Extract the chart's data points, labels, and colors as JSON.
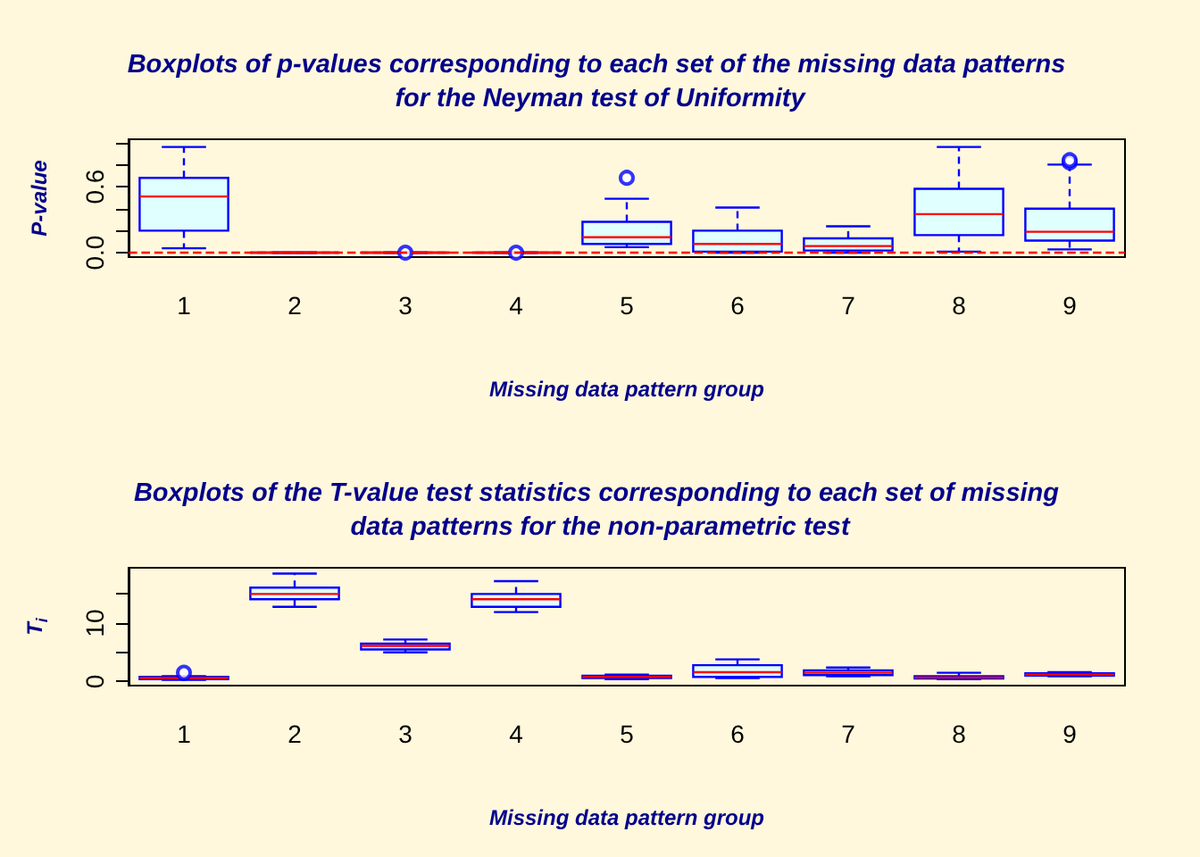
{
  "chart_data": [
    {
      "type": "box",
      "title": "Boxplots of p-values corresponding to each set of the missing data patterns for the Neyman test of Uniformity",
      "xlabel": "Missing data pattern group",
      "ylabel": "P-value",
      "categories": [
        "1",
        "2",
        "3",
        "4",
        "5",
        "6",
        "7",
        "8",
        "9"
      ],
      "color": "#0000ff",
      "boxes": [
        {
          "low": 0.04,
          "q1": 0.2,
          "median": 0.51,
          "q3": 0.68,
          "high": 0.96
        },
        {
          "low": 0,
          "q1": 0,
          "median": 0,
          "q3": 0,
          "high": 0
        },
        {
          "low": 0,
          "q1": 0,
          "median": 0,
          "q3": 0,
          "high": 0,
          "outliers": [
            0
          ]
        },
        {
          "low": 0,
          "q1": 0,
          "median": 0,
          "q3": 0,
          "high": 0,
          "outliers": [
            0
          ]
        },
        {
          "low": 0.05,
          "q1": 0.08,
          "median": 0.14,
          "q3": 0.28,
          "high": 0.49,
          "outliers": [
            0.68
          ]
        },
        {
          "low": 0,
          "q1": 0.01,
          "median": 0.08,
          "q3": 0.2,
          "high": 0.41
        },
        {
          "low": 0,
          "q1": 0.02,
          "median": 0.06,
          "q3": 0.13,
          "high": 0.24
        },
        {
          "low": 0.01,
          "q1": 0.16,
          "median": 0.35,
          "q3": 0.58,
          "high": 0.96
        },
        {
          "low": 0.03,
          "q1": 0.11,
          "median": 0.19,
          "q3": 0.4,
          "high": 0.8,
          "outliers": [
            0.82,
            0.84
          ]
        }
      ],
      "ylim": [
        -0.04,
        1.03
      ],
      "yticks": [
        {
          "value": 0,
          "label": "0.0"
        },
        {
          "value": 0.2,
          "label": null
        },
        {
          "value": 0.4,
          "label": null
        },
        {
          "value": 0.6,
          "label": "0.6"
        },
        {
          "value": 0.8,
          "label": null
        },
        {
          "value": 1,
          "label": null
        }
      ],
      "ref_lines": [
        {
          "axis": "y",
          "value": 0,
          "color": "#ff0000",
          "line_style": "dashed"
        }
      ],
      "grid": false
    },
    {
      "type": "box",
      "title": "Boxplots of the T-value test statistics corresponding to each set of missing data patterns for the non-parametric test",
      "xlabel": "Missing data pattern group",
      "ylabel": "T$_{i}$",
      "categories": [
        "1",
        "2",
        "3",
        "4",
        "5",
        "6",
        "7",
        "8",
        "9"
      ],
      "color": "#0000ff",
      "boxes": [
        {
          "low": 0.3,
          "q1": 0.4,
          "median": 0.6,
          "q3": 0.8,
          "high": 0.9,
          "outliers": [
            1.5
          ]
        },
        {
          "low": 12.8,
          "q1": 14.1,
          "median": 15.0,
          "q3": 16.1,
          "high": 18.5
        },
        {
          "low": 5.0,
          "q1": 5.5,
          "median": 6.1,
          "q3": 6.5,
          "high": 7.2
        },
        {
          "low": 11.9,
          "q1": 12.8,
          "median": 14.1,
          "q3": 15.0,
          "high": 17.2
        },
        {
          "low": 0.4,
          "q1": 0.6,
          "median": 0.8,
          "q3": 1.0,
          "high": 1.2
        },
        {
          "low": 0.6,
          "q1": 0.8,
          "median": 1.6,
          "q3": 2.8,
          "high": 3.8
        },
        {
          "low": 0.9,
          "q1": 1.1,
          "median": 1.5,
          "q3": 1.9,
          "high": 2.4
        },
        {
          "low": 0.4,
          "q1": 0.5,
          "median": 0.7,
          "q3": 0.9,
          "high": 1.5
        },
        {
          "low": 0.9,
          "q1": 1.0,
          "median": 1.2,
          "q3": 1.4,
          "high": 1.6
        }
      ],
      "ylim": [
        -0.7,
        19.5
      ],
      "yticks": [
        0,
        {
          "value": 5,
          "label": null
        },
        10,
        {
          "value": 15,
          "label": null
        }
      ],
      "grid": false
    }
  ]
}
